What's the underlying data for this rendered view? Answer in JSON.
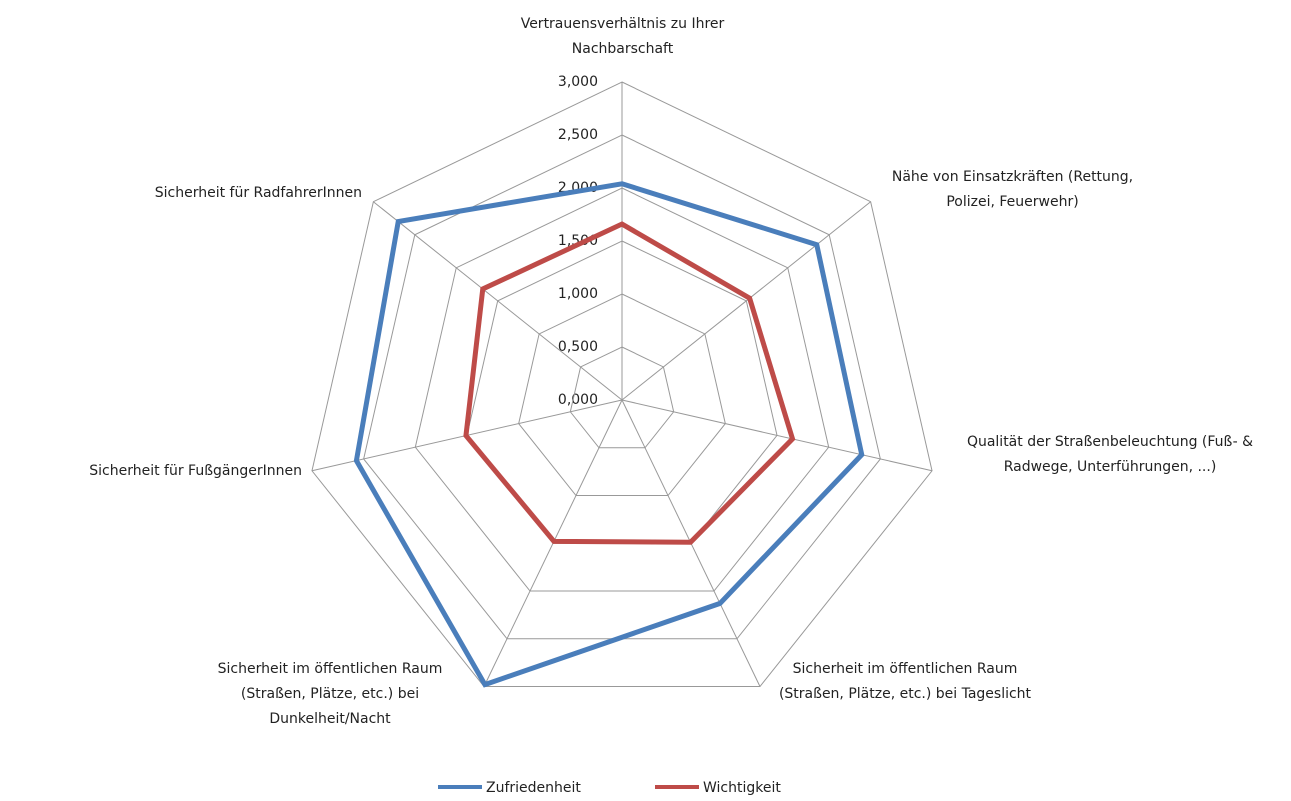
{
  "chart_data": {
    "type": "radar",
    "categories": [
      "Vertrauensverhältnis zu Ihrer Nachbarschaft",
      "Nähe von Einsatzkräften (Rettung, Polizei, Feuerwehr)",
      "Qualität der Straßenbeleuchtung (Fuß- & Radwege, Unterführungen, ...)",
      "Sicherheit im öffentlichen Raum (Straßen, Plätze, etc.) bei Tageslicht",
      "Sicherheit im öffentlichen Raum (Straßen, Plätze, etc.) bei Dunkelheit/Nacht",
      "Sicherheit für FußgängerInnen",
      "Sicherheit für RadfahrerInnen"
    ],
    "series": [
      {
        "name": "Zufriedenheit",
        "color": "#4a7ebb",
        "values": [
          2.04,
          2.35,
          2.32,
          2.13,
          2.98,
          2.57,
          2.7
        ]
      },
      {
        "name": "Wichtigkeit",
        "color": "#be4b48",
        "values": [
          1.66,
          1.54,
          1.65,
          1.49,
          1.48,
          1.51,
          1.68
        ]
      }
    ],
    "ylim": [
      0,
      3
    ],
    "yticks": [
      {
        "value": 0,
        "label": "0,000"
      },
      {
        "value": 0.5,
        "label": "0,500"
      },
      {
        "value": 1,
        "label": "1,000"
      },
      {
        "value": 1.5,
        "label": "1,500"
      },
      {
        "value": 2,
        "label": "2,000"
      },
      {
        "value": 2.5,
        "label": "2,500"
      },
      {
        "value": 3,
        "label": "3,000"
      }
    ],
    "grid": true,
    "legend": "bottom"
  }
}
